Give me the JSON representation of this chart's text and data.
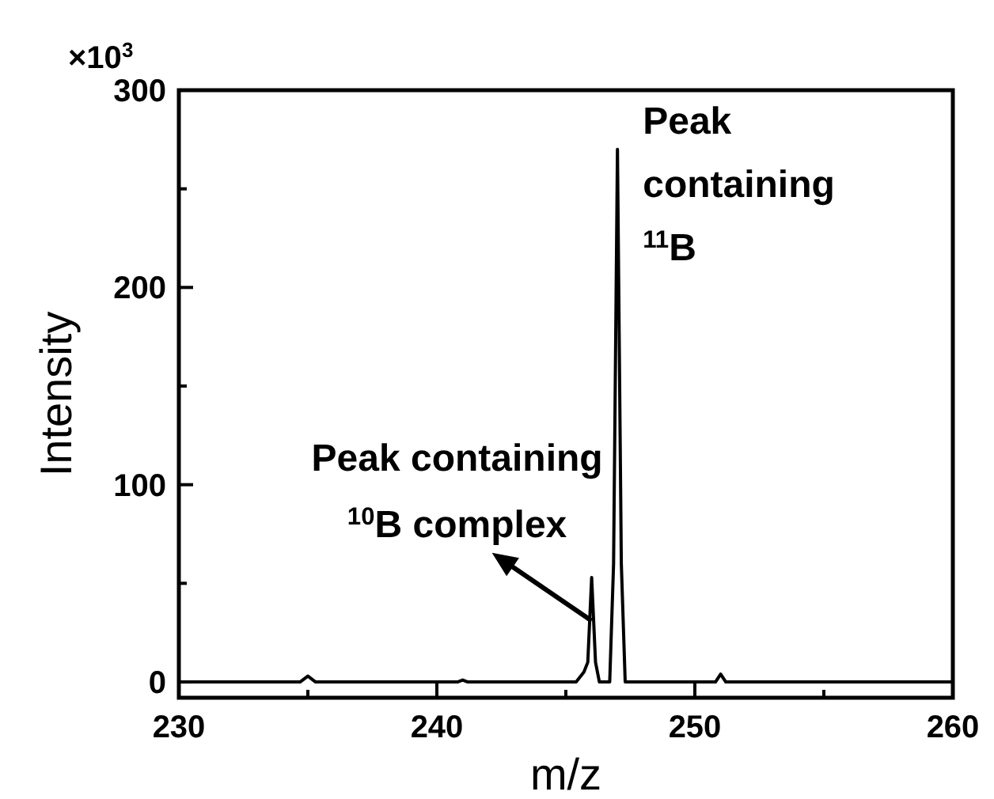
{
  "chart_data": {
    "type": "line",
    "xlabel": "m/z",
    "ylabel": "Intensity",
    "x": [
      230,
      234.7,
      235,
      235.3,
      240.8,
      241,
      241.2,
      245.4,
      245.7,
      245.85,
      246,
      246.15,
      246.3,
      246.7,
      246.85,
      247,
      247.15,
      247.3,
      250.8,
      251,
      251.2,
      260
    ],
    "series": [
      {
        "color": "#000000",
        "values": [
          0,
          0,
          3,
          0,
          0,
          1,
          0,
          0,
          5,
          10,
          53,
          10,
          0,
          0,
          60,
          270,
          60,
          0,
          0,
          4,
          0,
          0
        ]
      }
    ],
    "xlim": [
      230,
      260
    ],
    "xticks": [
      230,
      {
        "value": 235,
        "label": null
      },
      240,
      {
        "value": 245,
        "label": null
      },
      250,
      {
        "value": 255,
        "label": null
      },
      260
    ],
    "ylim": [
      -8,
      300
    ],
    "yticks": [
      0,
      {
        "value": 50,
        "label": null
      },
      100,
      {
        "value": 150,
        "label": null
      },
      200,
      {
        "value": 250,
        "label": null
      },
      300
    ],
    "marker": "none",
    "line_style": "solid",
    "annotations": [
      "×10$^{3}$",
      {
        "text": "Peak containing $^{11}$B",
        "x": 247,
        "y": 270
      },
      {
        "text": "Peak containing $^{10}$B complex",
        "x": 246,
        "y": 31
      }
    ]
  }
}
